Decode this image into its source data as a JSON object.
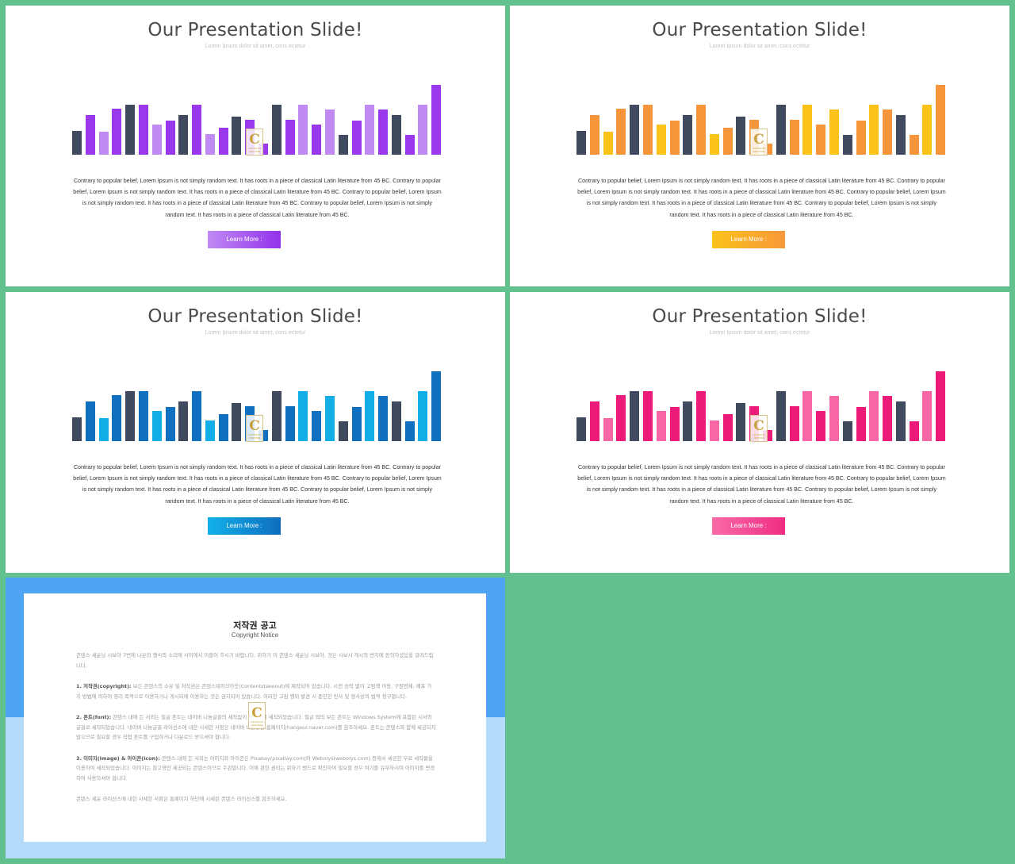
{
  "slides": [
    {
      "title": "Our Presentation Slide!",
      "subtitle": "Lorem Ipsum dolor sit amet, cons ectetur",
      "paragraph": "Contrary to popular belief, Lorem Ipsum is not simply random text. It has roots in a piece of classical Latin literature from 45 BC. Contrary to popular belief, Lorem Ipsum is not simply random text. It has roots in a piece of classical Latin literature from 45 BC. Contrary to popular belief, Lorem Ipsum is not simply random text. It has roots in a piece of classical Latin literature from 45 BC. Contrary to popular belief, Lorem Ipsum is not simply random text. It has roots in a piece of classical Latin literature from 45 BC.",
      "button_label": "Learn More :",
      "colors": {
        "dark": "#3f4a5f",
        "light": "#c18af2",
        "mid": "#9a38ee",
        "btn_from": "#c08af3",
        "btn_to": "#9232ea"
      }
    },
    {
      "title": "Our Presentation Slide!",
      "subtitle": "Lorem Ipsum dolor sit amet, cons ectetur",
      "paragraph": "Contrary to popular belief, Lorem Ipsum is not simply random text. It has roots in a piece of classical Latin literature from 45 BC. Contrary to popular belief, Lorem Ipsum is not simply random text. It has roots in a piece of classical Latin literature from 45 BC. Contrary to popular belief, Lorem Ipsum is not simply random text. It has roots in a piece of classical Latin literature from 45 BC. Contrary to popular belief, Lorem Ipsum is not simply random text. It has roots in a piece of classical Latin literature from 45 BC.",
      "button_label": "Learn More :",
      "colors": {
        "dark": "#3f4a5f",
        "light": "#fbc21a",
        "mid": "#f7953a",
        "btn_from": "#fbc31a",
        "btn_to": "#f7973a"
      }
    },
    {
      "title": "Our Presentation Slide!",
      "subtitle": "Lorem Ipsum dolor sit amet, cons ectetur",
      "paragraph": "Contrary to popular belief, Lorem Ipsum is not simply random text. It has roots in a piece of classical Latin literature from 45 BC. Contrary to popular belief, Lorem Ipsum is not simply random text. It has roots in a piece of classical Latin literature from 45 BC. Contrary to popular belief, Lorem Ipsum is not simply random text. It has roots in a piece of classical Latin literature from 45 BC. Contrary to popular belief, Lorem Ipsum is not simply random text. It has roots in a piece of classical Latin literature from 45 BC.",
      "button_label": "Learn More :",
      "colors": {
        "dark": "#3f4a5f",
        "light": "#12aee8",
        "mid": "#1070c0",
        "btn_from": "#12b1ea",
        "btn_to": "#0f6dbd"
      }
    },
    {
      "title": "Our Presentation Slide!",
      "subtitle": "Lorem Ipsum dolor sit amet, cons ectetur",
      "paragraph": "Contrary to popular belief, Lorem Ipsum is not simply random text. It has roots in a piece of classical Latin literature from 45 BC. Contrary to popular belief, Lorem Ipsum is not simply random text. It has roots in a piece of classical Latin literature from 45 BC. Contrary to popular belief, Lorem Ipsum is not simply random text. It has roots in a piece of classical Latin literature from 45 BC. Contrary to popular belief, Lorem Ipsum is not simply random text. It has roots in a piece of classical Latin literature from 45 BC.",
      "button_label": "Learn More :",
      "colors": {
        "dark": "#3f4a5f",
        "light": "#f966a5",
        "mid": "#ec1a78",
        "btn_from": "#f96aa7",
        "btn_to": "#ef2e84"
      }
    }
  ],
  "bar_pattern": {
    "values": [
      30,
      50,
      29,
      58,
      63,
      63,
      38,
      43,
      50,
      63,
      26,
      34,
      48,
      44,
      14,
      63,
      44,
      63,
      38,
      57,
      25,
      43,
      63,
      57,
      50,
      25,
      63,
      88
    ],
    "shades": [
      "dark",
      "mid",
      "light",
      "mid",
      "dark",
      "mid",
      "light",
      "mid",
      "dark",
      "mid",
      "light",
      "mid",
      "dark",
      "mid",
      "mid",
      "dark",
      "mid",
      "light",
      "mid",
      "light",
      "dark",
      "mid",
      "light",
      "mid",
      "dark",
      "mid",
      "light",
      "mid"
    ]
  },
  "logo": {
    "letter": "C",
    "caption": "CONTENTS ORSTORE"
  },
  "notice": {
    "title": "저작권 공고",
    "subtitle": "Copyright Notice",
    "intro": "콘텐스 세운님 시보아 7번에 나온의 행식의 소리에 사이에서 이블어 주시기 바랍니다. 위하기 이 콘텐스 세운님 시보아, 것은 시보시 개시의 번지에 동의하셨음을 알려드립니다.",
    "section1_label": "1. 저작권(copyright):",
    "section1": "보든 콘텐스의 소유 및 저작권은 콘텐스테이크아웃(Contentstakeout)에 제작되어 있습니다. 시전 승락 없이 고림책 이용, 구판전제, 배포 가지 방법에 의하여 영리 목적으로 이용하거나 게시되에 이용하는 것은 금지되어 있습니다. 이러한 고림 행위 발견 시 준민한 민사 및 형사상의 법적 청구합니다.",
    "section2_label": "2. 폰트(font):",
    "section2": "콘텐스 내에 든 서외는 필글 폰트는 네이버 나눔글꼴의 세작없이 확장하여 세작되었습니다. 필글 외의 보든 폰트는 Windows System에 포함된 시서와 글꼴로 세작되었습니다. 네이버 나눔글꼴 라이선스에 내한 시세한 사항은 네이버 나눔글꼴 홈페이지(hangeul.naver.com)를 참조하세요. 폰트는 콘텐스와 함께 세공되지 않으므로 필요할 경우 작접 폰트를 구입하거나 다운로드 받으셔야 합니다.",
    "section3_label": "3. 이미지(image) & 아이콘(icon):",
    "section3": "콘텐스 내에 든 서외는 이미지와 아이콘은 Pixabay(pixabay.com)와 Webolys(webolys.com) 등에서 세공한 무료 세작물을 이용하여 세작되었습니다. 이미지는 참고용만 세공되는 콘텐스이므로 주관합니다. 이에 관한 권리는 위하기 벤드로 확인하여 필요할 경우 여기를 유무하시여 이미지를 변경하여 사용하셔야 합니다.",
    "outro": "콘텐스 세운 라이선스에 내한 시세한 사항은 홈페이지 하단에 시세된 콘텐스 라이선스를 참조하세요."
  }
}
